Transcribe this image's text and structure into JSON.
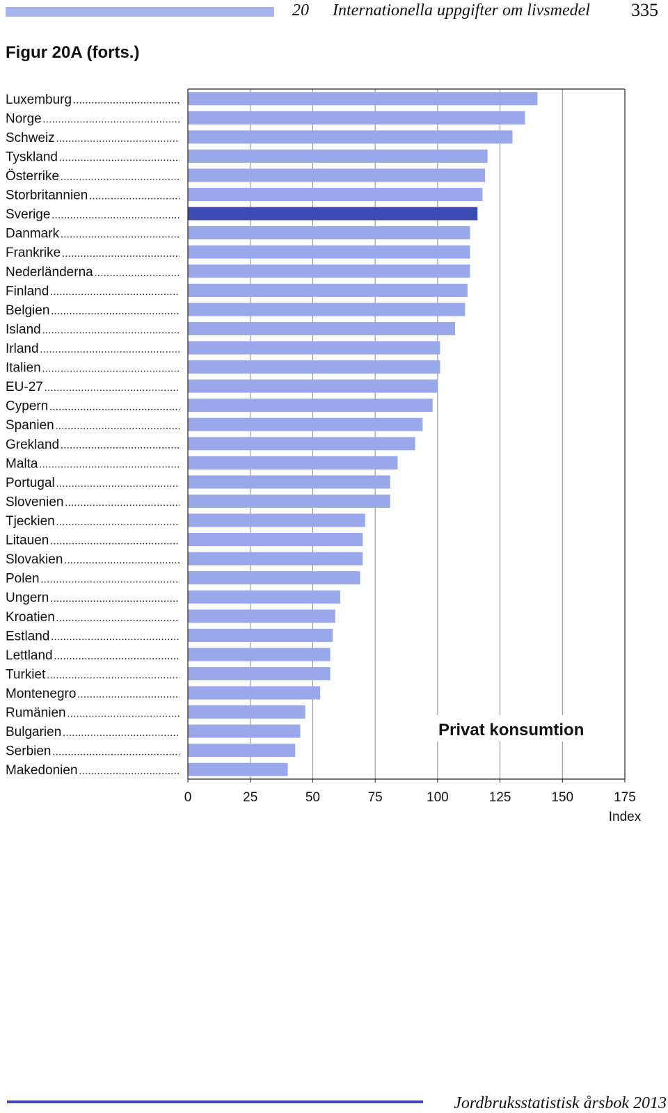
{
  "header": {
    "chapter_no": "20",
    "chapter_title": "Internationella uppgifter om livsmedel",
    "page_number": "335"
  },
  "figure_title": "Figur 20A (forts.)",
  "footer": {
    "book_title": "Jordbruksstatistisk årsbok 2013"
  },
  "colors": {
    "bar": "#98a8eb",
    "highlight": "#3c4bb4",
    "grid": "#8a8a8a"
  },
  "chart_data": {
    "type": "bar",
    "orientation": "horizontal",
    "title": "Privat konsumtion",
    "xlabel": "Index",
    "xlim": [
      0,
      175
    ],
    "xticks": [
      "0",
      "25",
      "50",
      "75",
      "100",
      "125",
      "150",
      "175"
    ],
    "grid": true,
    "highlight": "Sverige",
    "categories": [
      "Luxemburg",
      "Norge",
      "Schweiz",
      "Tyskland",
      "Österrike",
      "Storbritannien",
      "Sverige",
      "Danmark",
      "Frankrike",
      "Nederländerna",
      "Finland",
      "Belgien",
      "Island",
      "Irland",
      "Italien",
      "EU-27",
      "Cypern",
      "Spanien",
      "Grekland",
      "Malta",
      "Portugal",
      "Slovenien",
      "Tjeckien",
      "Litauen",
      "Slovakien",
      "Polen",
      "Ungern",
      "Kroatien",
      "Estland",
      "Lettland",
      "Turkiet",
      "Montenegro",
      "Rumänien",
      "Bulgarien",
      "Serbien",
      "Makedonien"
    ],
    "values": [
      140,
      135,
      130,
      120,
      119,
      118,
      116,
      113,
      113,
      113,
      112,
      111,
      107,
      101,
      101,
      100,
      98,
      94,
      91,
      84,
      81,
      81,
      71,
      70,
      70,
      69,
      61,
      59,
      58,
      57,
      57,
      53,
      47,
      45,
      43,
      40
    ]
  }
}
